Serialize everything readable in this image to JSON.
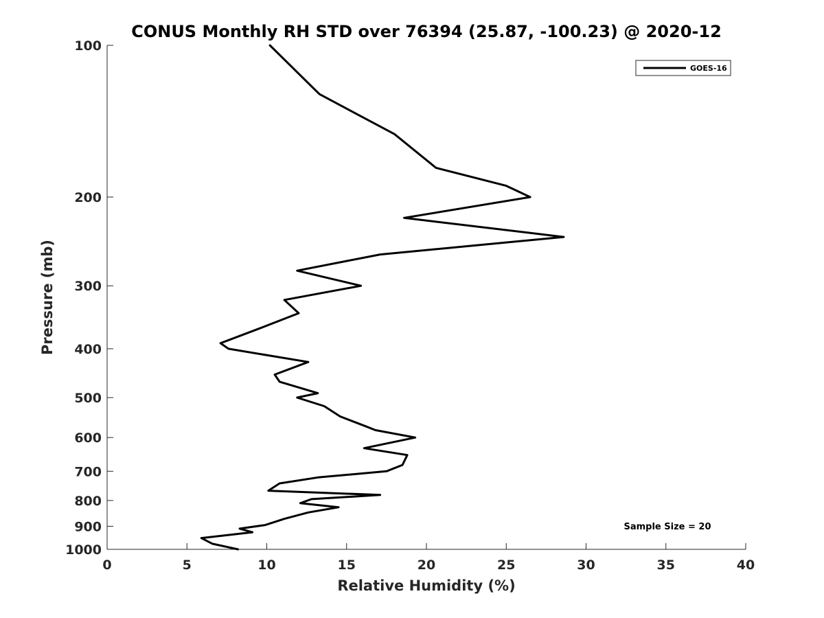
{
  "chart_data": {
    "type": "line",
    "title": "CONUS Monthly RH STD over 76394 (25.87, -100.23) @ 2020-12",
    "xlabel": "Relative Humidity (%)",
    "ylabel": "Pressure (mb)",
    "xlim": [
      0,
      40
    ],
    "ylim": [
      100,
      1000
    ],
    "y_scale": "log",
    "y_reversed": true,
    "x_ticks": [
      "0",
      "5",
      "10",
      "15",
      "20",
      "25",
      "30",
      "35",
      "40"
    ],
    "y_ticks": [
      "100",
      "200",
      "300",
      "400",
      "500",
      "600",
      "700",
      "800",
      "900",
      "1000"
    ],
    "grid": false,
    "legend_position": "top-right",
    "annotation": "Sample Size = 20",
    "series": [
      {
        "name": "GOES-16",
        "color": "#000000",
        "points": [
          [
            10.2,
            100
          ],
          [
            13.3,
            125
          ],
          [
            18.0,
            150
          ],
          [
            20.6,
            175
          ],
          [
            25.0,
            190
          ],
          [
            26.5,
            200
          ],
          [
            18.6,
            220
          ],
          [
            28.6,
            240
          ],
          [
            17.1,
            260
          ],
          [
            11.9,
            280
          ],
          [
            15.9,
            300
          ],
          [
            11.1,
            320
          ],
          [
            12.0,
            340
          ],
          [
            9.5,
            365
          ],
          [
            7.1,
            390
          ],
          [
            7.6,
            400
          ],
          [
            12.6,
            425
          ],
          [
            10.5,
            450
          ],
          [
            10.8,
            465
          ],
          [
            13.2,
            490
          ],
          [
            11.9,
            500
          ],
          [
            13.6,
            520
          ],
          [
            14.6,
            545
          ],
          [
            16.2,
            570
          ],
          [
            16.8,
            580
          ],
          [
            19.3,
            600
          ],
          [
            16.1,
            630
          ],
          [
            18.8,
            650
          ],
          [
            18.5,
            680
          ],
          [
            17.5,
            700
          ],
          [
            13.2,
            720
          ],
          [
            10.8,
            740
          ],
          [
            10.1,
            765
          ],
          [
            17.1,
            780
          ],
          [
            12.8,
            795
          ],
          [
            12.1,
            810
          ],
          [
            14.5,
            825
          ],
          [
            12.6,
            845
          ],
          [
            11.1,
            870
          ],
          [
            9.9,
            895
          ],
          [
            8.3,
            910
          ],
          [
            9.1,
            925
          ],
          [
            5.9,
            950
          ],
          [
            6.6,
            975
          ],
          [
            8.2,
            1000
          ]
        ]
      }
    ]
  }
}
